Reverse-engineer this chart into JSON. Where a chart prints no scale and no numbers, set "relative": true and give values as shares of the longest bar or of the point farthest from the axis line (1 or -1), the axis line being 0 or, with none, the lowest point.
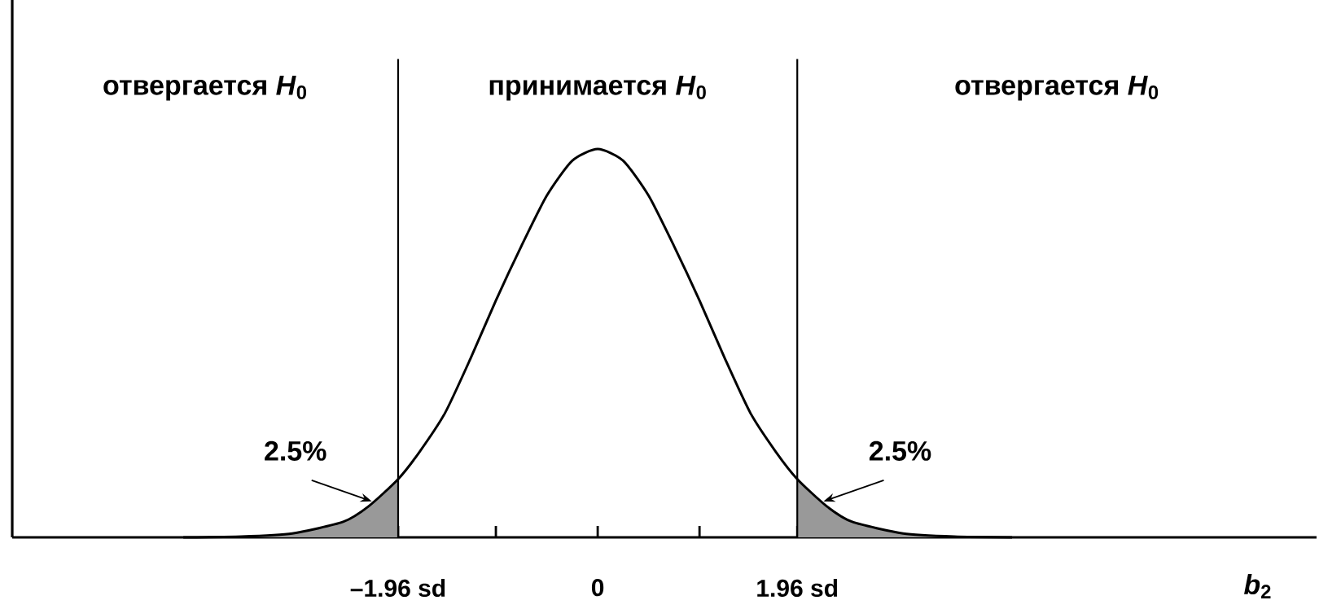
{
  "chart_data": {
    "type": "line",
    "relative": true,
    "xlabel": "*b*$_{2}$",
    "xlim": [
      -5.75,
      7.06
    ],
    "xticks": [
      {
        "value": -1.96,
        "label": "–1.96 sd"
      },
      {
        "value": -1,
        "label": null
      },
      0,
      {
        "value": 1,
        "label": null
      },
      {
        "value": 1.96,
        "label": "1.96 sd"
      }
    ],
    "series": [
      {
        "type": "area",
        "color": "#999999",
        "x": [
          -4.07,
          -3.5,
          -3,
          -2.5,
          -2.25,
          -1.96
        ],
        "values": [
          0,
          0.002,
          0.01,
          0.04,
          0.08,
          0.15
        ]
      },
      {
        "type": "area",
        "color": "#999999",
        "x": [
          1.96,
          2.25,
          2.5,
          3,
          3.5,
          4.07
        ],
        "values": [
          0.15,
          0.08,
          0.04,
          0.01,
          0.002,
          0
        ]
      },
      {
        "color": "#000000",
        "x": [
          -4.07,
          -3.5,
          -3,
          -2.5,
          -2.25,
          -1.96,
          -1.75,
          -1.5,
          -1.25,
          -1,
          -0.75,
          -0.5,
          -0.25,
          0,
          0.25,
          0.5,
          0.75,
          1,
          1.25,
          1.5,
          1.75,
          1.96,
          2.25,
          2.5,
          3,
          3.5,
          4.07
        ],
        "values": [
          0,
          0.002,
          0.01,
          0.04,
          0.08,
          0.15,
          0.22,
          0.32,
          0.46,
          0.61,
          0.75,
          0.88,
          0.97,
          1,
          0.97,
          0.88,
          0.75,
          0.61,
          0.46,
          0.32,
          0.22,
          0.15,
          0.08,
          0.04,
          0.01,
          0.002,
          0
        ]
      }
    ],
    "ref_lines": [
      {
        "axis": "x",
        "value": -1.96
      },
      {
        "axis": "x",
        "value": 1.96
      }
    ],
    "annotations": [
      "отвергается *H*$_{0}$",
      "принимается *H*$_{0}$",
      "отвергается *H*$_{0}$",
      "2.5%",
      "2.5%"
    ]
  }
}
